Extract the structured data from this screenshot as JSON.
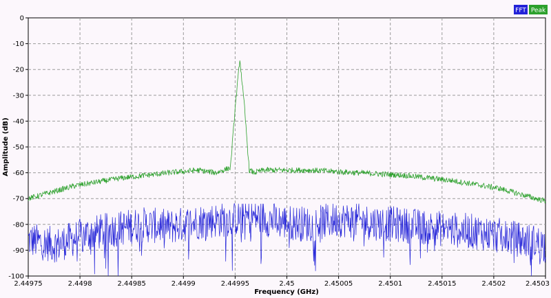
{
  "chart_data": {
    "type": "line",
    "xlabel": "Frequency (GHz)",
    "ylabel": "Amplitude (dB)",
    "xlim": [
      2.44975,
      2.4503
    ],
    "ylim": [
      -100,
      0
    ],
    "x_ticks": [
      "2.44975",
      "2.4498",
      "2.44985",
      "2.4499",
      "2.44995",
      "2.45",
      "2.45005",
      "2.4501",
      "2.45015",
      "2.4502",
      "2.4503"
    ],
    "y_ticks": [
      "0",
      "-10",
      "-20",
      "-30",
      "-40",
      "-50",
      "-60",
      "-70",
      "-80",
      "-90",
      "-100"
    ],
    "grid": true,
    "legend_position": "top-right",
    "series": [
      {
        "name": "FFT",
        "color": "#2323d8",
        "x": [
          2.44975,
          2.44978,
          2.44981,
          2.44984,
          2.44987,
          2.4499,
          2.44993,
          2.44996,
          2.44999,
          2.45002,
          2.45005,
          2.45008,
          2.45011,
          2.45014,
          2.45017,
          2.4502,
          2.45023,
          2.45026,
          2.45029,
          2.4503
        ],
        "y": [
          -86,
          -88,
          -84,
          -82,
          -80,
          -81,
          -79,
          -78,
          -77,
          -79,
          -80,
          -78,
          -79,
          -80,
          -81,
          -82,
          -83,
          -85,
          -87,
          -88
        ],
        "noise_floor_min": -100,
        "noise_peak_max": -72
      },
      {
        "name": "Peak",
        "color": "#2ca02c",
        "x": [
          2.44975,
          2.4498,
          2.44985,
          2.4499,
          2.44993,
          2.44995,
          2.449965,
          2.44997,
          2.449975,
          2.44998,
          2.449985,
          2.44999,
          2.45,
          2.45005,
          2.4501,
          2.45015,
          2.4502,
          2.45025,
          2.4503
        ],
        "y": [
          -70,
          -65,
          -62,
          -60,
          -59,
          -60,
          -58,
          -35,
          -16,
          -35,
          -59,
          -60,
          -59,
          -59,
          -60,
          -61,
          -63,
          -66,
          -71
        ]
      }
    ]
  }
}
